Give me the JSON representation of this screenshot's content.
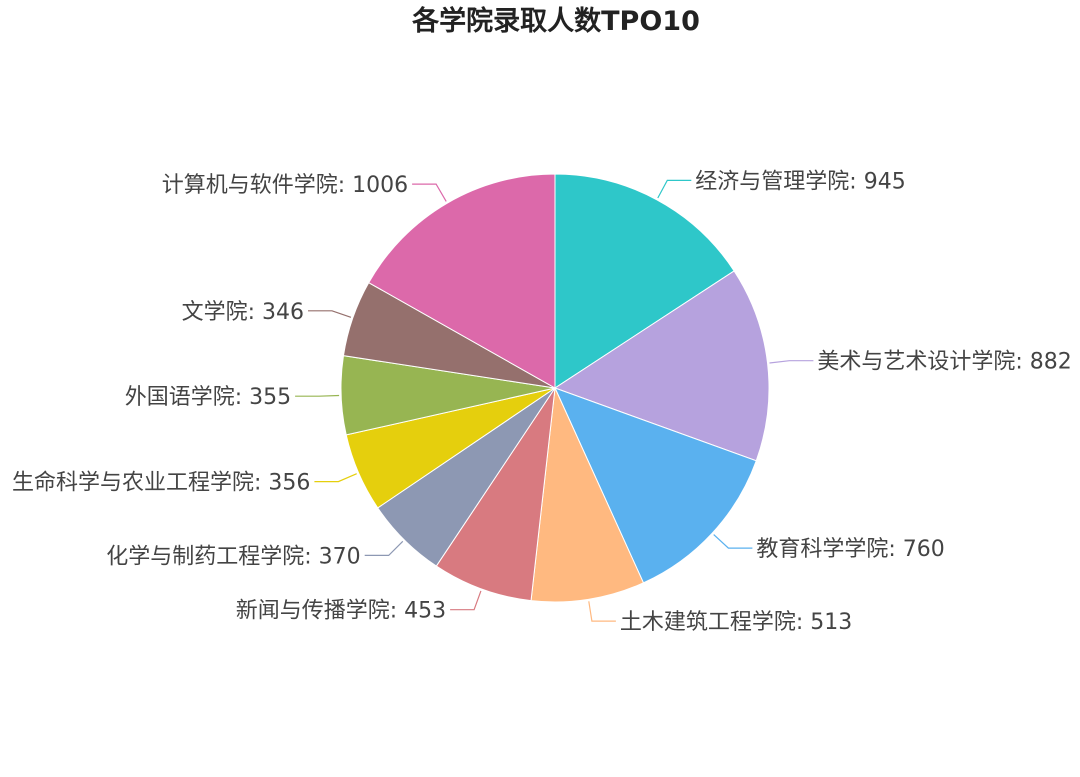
{
  "chart_data": {
    "type": "pie",
    "title": "各学院录取人数TPO10",
    "slices": [
      {
        "label": "经济与管理学院",
        "value": 945,
        "color": "#2ec7c9"
      },
      {
        "label": "美术与艺术设计学院",
        "value": 882,
        "color": "#b6a2de"
      },
      {
        "label": "教育科学学院",
        "value": 760,
        "color": "#5ab1ef"
      },
      {
        "label": "土木建筑工程学院",
        "value": 513,
        "color": "#ffb980"
      },
      {
        "label": "新闻与传播学院",
        "value": 453,
        "color": "#d87a80"
      },
      {
        "label": "化学与制药工程学院",
        "value": 370,
        "color": "#8d98b3"
      },
      {
        "label": "生命科学与农业工程学院",
        "value": 356,
        "color": "#e5cf0d"
      },
      {
        "label": "外国语学院",
        "value": 355,
        "color": "#97b552"
      },
      {
        "label": "文学院",
        "value": 346,
        "color": "#95706d"
      },
      {
        "label": "计算机与软件学院",
        "value": 1006,
        "color": "#dc69aa"
      }
    ]
  }
}
